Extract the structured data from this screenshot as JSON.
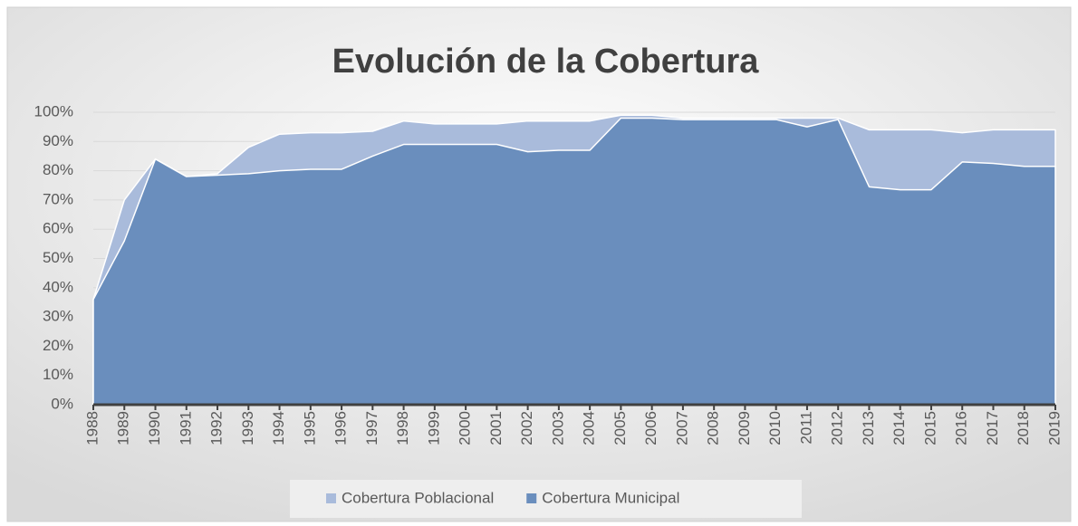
{
  "chart_data": {
    "type": "area",
    "title": "Evolución de la Cobertura",
    "categories": [
      "1988",
      "1989",
      "1990",
      "1991",
      "1992",
      "1993",
      "1994",
      "1995",
      "1996",
      "1997",
      "1998",
      "1999",
      "2000",
      "2001",
      "2002",
      "2003",
      "2004",
      "2005",
      "2006",
      "2007",
      "2008",
      "2009",
      "2010",
      "2011",
      "2012",
      "2013",
      "2014",
      "2015",
      "2016",
      "2017",
      "2018",
      "2019"
    ],
    "series": [
      {
        "name": "Cobertura Poblacional",
        "color": "#a9bbdb",
        "values": [
          36,
          70,
          84,
          78,
          79,
          88,
          92.5,
          93,
          93,
          93.5,
          97,
          96,
          96,
          96,
          97,
          97,
          97,
          99,
          99,
          98,
          98,
          98,
          98,
          98,
          98,
          94,
          94,
          94,
          93,
          94,
          94,
          94
        ]
      },
      {
        "name": "Cobertura Municipal",
        "color": "#6a8ebd",
        "values": [
          36,
          56,
          84,
          78,
          78.5,
          79,
          80,
          80.5,
          80.5,
          85,
          89,
          89,
          89,
          89,
          86.5,
          87,
          87,
          98,
          98,
          97.5,
          97.5,
          97.5,
          97.5,
          95,
          97.5,
          74.5,
          73.5,
          73.5,
          83,
          82.5,
          81.5,
          81.5
        ]
      }
    ],
    "ylim": [
      0,
      100
    ],
    "yticks": [
      {
        "value": 0,
        "label": "0%"
      },
      {
        "value": 10,
        "label": "10%"
      },
      {
        "value": 20,
        "label": "20%"
      },
      {
        "value": 30,
        "label": "30%"
      },
      {
        "value": 40,
        "label": "40%"
      },
      {
        "value": 50,
        "label": "50%"
      },
      {
        "value": 60,
        "label": "60%"
      },
      {
        "value": 70,
        "label": "70%"
      },
      {
        "value": 80,
        "label": "80%"
      },
      {
        "value": 90,
        "label": "90%"
      },
      {
        "value": 100,
        "label": "100%"
      }
    ],
    "grid": true,
    "legend": "bottom"
  }
}
